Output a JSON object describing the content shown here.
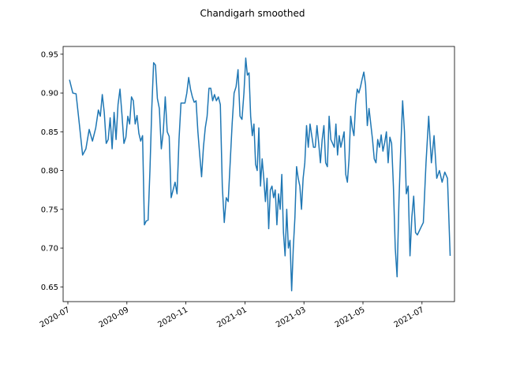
{
  "chart_data": {
    "type": "line",
    "title": "Chandigarh smoothed",
    "x": [
      "2020-07",
      "2020-07",
      "2020-07",
      "2020-07",
      "2020-07",
      "2020-07",
      "2020-07",
      "2020-07",
      "2020-07",
      "2020-08",
      "2020-08",
      "2020-08",
      "2020-08",
      "2020-08",
      "2020-08",
      "2020-08",
      "2020-08",
      "2020-08",
      "2020-08",
      "2020-08",
      "2020-08",
      "2020-08",
      "2020-08",
      "2020-08",
      "2020-09",
      "2020-09",
      "2020-09",
      "2020-09",
      "2020-09",
      "2020-09",
      "2020-09",
      "2020-09",
      "2020-09",
      "2020-09",
      "2020-09",
      "2020-09",
      "2020-09",
      "2020-09",
      "2020-09",
      "2020-09",
      "2020-10",
      "2020-10",
      "2020-10",
      "2020-10",
      "2020-10",
      "2020-10",
      "2020-10",
      "2020-10",
      "2020-10",
      "2020-10",
      "2020-10",
      "2020-10",
      "2020-10",
      "2020-10",
      "2020-10",
      "2020-11",
      "2020-11",
      "2020-11",
      "2020-11",
      "2020-11",
      "2020-11",
      "2020-11",
      "2020-11",
      "2020-11",
      "2020-11",
      "2020-11",
      "2020-11",
      "2020-11",
      "2020-11",
      "2020-11",
      "2020-11",
      "2020-12",
      "2020-12",
      "2020-12",
      "2020-12",
      "2020-12",
      "2020-12",
      "2020-12",
      "2020-12",
      "2020-12",
      "2020-12",
      "2020-12",
      "2020-12",
      "2020-12",
      "2020-12",
      "2020-12",
      "2021-01",
      "2021-01",
      "2021-01",
      "2021-01",
      "2021-01",
      "2021-01",
      "2021-01",
      "2021-01",
      "2021-01",
      "2021-01",
      "2021-01",
      "2021-01",
      "2021-01",
      "2021-01",
      "2021-01",
      "2021-01",
      "2021-01",
      "2021-01",
      "2021-02",
      "2021-02",
      "2021-02",
      "2021-02",
      "2021-02",
      "2021-02",
      "2021-02",
      "2021-02",
      "2021-02",
      "2021-02",
      "2021-02",
      "2021-02",
      "2021-02",
      "2021-02",
      "2021-02",
      "2021-02",
      "2021-02",
      "2021-02",
      "2021-03",
      "2021-03",
      "2021-03",
      "2021-03",
      "2021-03",
      "2021-03",
      "2021-03",
      "2021-03",
      "2021-03",
      "2021-03",
      "2021-03",
      "2021-03",
      "2021-03",
      "2021-03",
      "2021-03",
      "2021-03",
      "2021-03",
      "2021-04",
      "2021-04",
      "2021-04",
      "2021-04",
      "2021-04",
      "2021-04",
      "2021-04",
      "2021-04",
      "2021-04",
      "2021-04",
      "2021-04",
      "2021-04",
      "2021-04",
      "2021-04",
      "2021-04",
      "2021-04",
      "2021-04",
      "2021-04",
      "2021-05",
      "2021-05",
      "2021-05",
      "2021-05",
      "2021-05",
      "2021-05",
      "2021-05",
      "2021-05",
      "2021-05",
      "2021-05",
      "2021-05",
      "2021-05",
      "2021-05",
      "2021-05",
      "2021-05",
      "2021-05",
      "2021-05",
      "2021-06",
      "2021-06",
      "2021-06",
      "2021-06",
      "2021-06",
      "2021-06",
      "2021-06",
      "2021-06",
      "2021-06",
      "2021-06",
      "2021-06",
      "2021-06",
      "2021-06",
      "2021-06",
      "2021-06",
      "2021-06",
      "2021-07",
      "2021-07",
      "2021-07",
      "2021-07",
      "2021-07",
      "2021-07",
      "2021-07",
      "2021-07",
      "2021-07",
      "2021-07",
      "2021-07"
    ],
    "series": [
      {
        "color": "#1f77b4",
        "values": [
          0.917,
          0.9,
          0.899,
          0.86,
          0.82,
          0.828,
          0.853,
          0.838,
          0.855,
          0.878,
          0.87,
          0.898,
          0.875,
          0.835,
          0.84,
          0.868,
          0.828,
          0.875,
          0.84,
          0.885,
          0.905,
          0.872,
          0.835,
          0.843,
          0.87,
          0.86,
          0.895,
          0.89,
          0.86,
          0.871,
          0.848,
          0.838,
          0.845,
          0.73,
          0.735,
          0.736,
          0.8,
          0.88,
          0.939,
          0.936,
          0.893,
          0.88,
          0.828,
          0.85,
          0.895,
          0.85,
          0.844,
          0.765,
          0.775,
          0.785,
          0.77,
          0.84,
          0.887,
          0.887,
          0.887,
          0.9,
          0.92,
          0.905,
          0.895,
          0.888,
          0.89,
          0.85,
          0.82,
          0.792,
          0.83,
          0.855,
          0.87,
          0.906,
          0.906,
          0.89,
          0.898,
          0.89,
          0.895,
          0.885,
          0.78,
          0.733,
          0.765,
          0.76,
          0.81,
          0.86,
          0.9,
          0.908,
          0.93,
          0.87,
          0.866,
          0.9,
          0.945,
          0.923,
          0.926,
          0.87,
          0.845,
          0.86,
          0.808,
          0.8,
          0.855,
          0.78,
          0.815,
          0.79,
          0.76,
          0.79,
          0.725,
          0.775,
          0.78,
          0.765,
          0.775,
          0.73,
          0.77,
          0.75,
          0.795,
          0.72,
          0.69,
          0.75,
          0.7,
          0.71,
          0.645,
          0.7,
          0.74,
          0.805,
          0.79,
          0.78,
          0.75,
          0.79,
          0.81,
          0.858,
          0.83,
          0.86,
          0.845,
          0.83,
          0.83,
          0.858,
          0.835,
          0.81,
          0.84,
          0.858,
          0.81,
          0.805,
          0.87,
          0.84,
          0.835,
          0.83,
          0.86,
          0.82,
          0.845,
          0.83,
          0.84,
          0.85,
          0.795,
          0.785,
          0.815,
          0.87,
          0.855,
          0.845,
          0.885,
          0.905,
          0.9,
          0.908,
          0.918,
          0.927,
          0.91,
          0.858,
          0.88,
          0.86,
          0.84,
          0.815,
          0.81,
          0.84,
          0.83,
          0.846,
          0.825,
          0.836,
          0.85,
          0.81,
          0.843,
          0.835,
          0.78,
          0.7,
          0.663,
          0.76,
          0.83,
          0.89,
          0.85,
          0.77,
          0.78,
          0.69,
          0.74,
          0.767,
          0.72,
          0.717,
          0.722,
          0.727,
          0.733,
          0.81,
          0.87,
          0.81,
          0.845,
          0.79,
          0.8,
          0.785,
          0.798,
          0.79,
          0.69
        ]
      }
    ],
    "ylim": [
      0.631,
      0.96
    ],
    "yticks": [
      0.65,
      {
        "value": 0.7,
        "label": "0.70"
      },
      0.75,
      {
        "value": 0.8,
        "label": "0.80"
      },
      0.85,
      {
        "value": 0.9,
        "label": "0.90"
      },
      0.95
    ],
    "xticks": [
      "2020-07",
      "2020-09",
      "2020-11",
      "2021-01",
      "2021-03",
      "2021-05",
      "2021-07"
    ]
  }
}
